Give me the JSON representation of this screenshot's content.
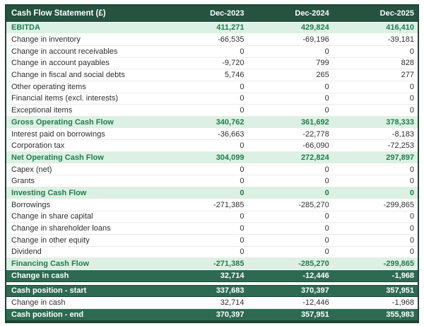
{
  "table": {
    "title": "Cash Flow Statement (£)",
    "columns": [
      "Dec-2023",
      "Dec-2024",
      "Dec-2025"
    ],
    "rows": [
      {
        "label": "EBITDA",
        "emphasis": "subtotal",
        "values": [
          "411,271",
          "429,824",
          "416,410"
        ]
      },
      {
        "label": "Change in inventory",
        "emphasis": "normal",
        "values": [
          "-66,535",
          "-69,196",
          "-39,181"
        ]
      },
      {
        "label": "Change in account receivables",
        "emphasis": "normal",
        "values": [
          "0",
          "0",
          "0"
        ]
      },
      {
        "label": "Change in account payables",
        "emphasis": "normal",
        "values": [
          "-9,720",
          "799",
          "828"
        ]
      },
      {
        "label": "Change in fiscal and social debts",
        "emphasis": "normal",
        "values": [
          "5,746",
          "265",
          "277"
        ]
      },
      {
        "label": "Other operating items",
        "emphasis": "normal",
        "values": [
          "0",
          "0",
          "0"
        ]
      },
      {
        "label": "Financial items (excl. interests)",
        "emphasis": "normal",
        "values": [
          "0",
          "0",
          "0"
        ]
      },
      {
        "label": "Exceptional items",
        "emphasis": "normal",
        "values": [
          "0",
          "0",
          "0"
        ]
      },
      {
        "label": "Gross Operating Cash Flow",
        "emphasis": "subtotal",
        "values": [
          "340,762",
          "361,692",
          "378,333"
        ]
      },
      {
        "label": "Interest paid on borrowings",
        "emphasis": "normal",
        "values": [
          "-36,663",
          "-22,778",
          "-8,183"
        ]
      },
      {
        "label": "Corporation tax",
        "emphasis": "normal",
        "values": [
          "0",
          "-66,090",
          "-72,253"
        ]
      },
      {
        "label": "Net Operating Cash Flow",
        "emphasis": "subtotal",
        "values": [
          "304,099",
          "272,824",
          "297,897"
        ]
      },
      {
        "label": "Capex (net)",
        "emphasis": "normal",
        "values": [
          "0",
          "0",
          "0"
        ]
      },
      {
        "label": "Grants",
        "emphasis": "normal",
        "values": [
          "0",
          "0",
          "0"
        ]
      },
      {
        "label": "Investing Cash Flow",
        "emphasis": "subtotal",
        "values": [
          "0",
          "0",
          "0"
        ]
      },
      {
        "label": "Borrowings",
        "emphasis": "normal",
        "values": [
          "-271,385",
          "-285,270",
          "-299,865"
        ]
      },
      {
        "label": "Change in share capital",
        "emphasis": "normal",
        "values": [
          "0",
          "0",
          "0"
        ]
      },
      {
        "label": "Change in shareholder loans",
        "emphasis": "normal",
        "values": [
          "0",
          "0",
          "0"
        ]
      },
      {
        "label": "Change in other equity",
        "emphasis": "normal",
        "values": [
          "0",
          "0",
          "0"
        ]
      },
      {
        "label": "Dividend",
        "emphasis": "normal",
        "values": [
          "0",
          "0",
          "0"
        ]
      },
      {
        "label": "Financing Cash Flow",
        "emphasis": "subtotal",
        "values": [
          "-271,385",
          "-285,270",
          "-299,865"
        ]
      },
      {
        "label": "Change in cash",
        "emphasis": "total",
        "values": [
          "32,714",
          "-12,446",
          "-1,968"
        ]
      }
    ],
    "summary_rows": [
      {
        "label": "Cash position - start",
        "emphasis": "total",
        "values": [
          "337,683",
          "370,397",
          "357,951"
        ]
      },
      {
        "label": "Change in cash",
        "emphasis": "normal",
        "values": [
          "32,714",
          "-12,446",
          "-1,968"
        ]
      },
      {
        "label": "Cash position - end",
        "emphasis": "total",
        "values": [
          "370,397",
          "357,951",
          "355,983"
        ]
      }
    ]
  },
  "colors": {
    "header_bg": "#265240",
    "total_bg": "#2e6a52",
    "subtotal_bg": "#dcf0e3",
    "subtotal_text": "#1f7d4f",
    "border_dark": "#1c4333"
  }
}
